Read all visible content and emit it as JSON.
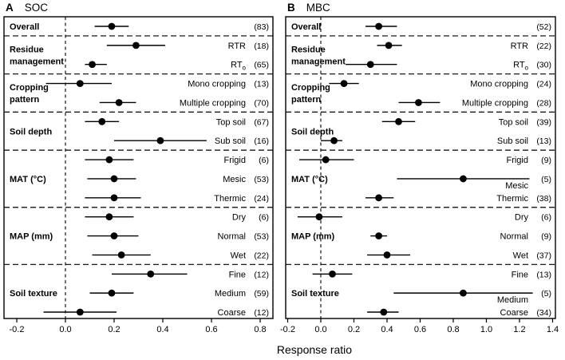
{
  "figure": {
    "xlabel": "Response ratio",
    "background": "#ffffff",
    "foreground": "#000000"
  },
  "chart_data": [
    {
      "type": "scatter",
      "panel": "A",
      "title": "SOC",
      "xlabel": "Response ratio",
      "legend": "none",
      "grid": "off",
      "xlim": [
        -0.2525,
        0.8525
      ],
      "xtick_labels": [
        "-0.2",
        "0.0",
        "0.2",
        "0.4",
        "0.6",
        "0.8"
      ],
      "xtick_values": [
        -0.2,
        0.0,
        0.2,
        0.4,
        0.6,
        0.8
      ],
      "zero_line": 0.0,
      "groups": [
        {
          "label": [
            "Overall"
          ],
          "rows": [
            {
              "label": "",
              "n": "(83)",
              "mean": 0.19,
              "ci": [
                0.12,
                0.26
              ]
            }
          ]
        },
        {
          "label": [
            "Residue",
            "management"
          ],
          "rows": [
            {
              "label": "RTR",
              "n": "(18)",
              "mean": 0.29,
              "ci": [
                0.17,
                0.41
              ]
            },
            {
              "label": "RT_o",
              "n": "(65)",
              "mean": 0.11,
              "ci": [
                0.08,
                0.17
              ]
            }
          ]
        },
        {
          "label": [
            "Cropping",
            "pattern"
          ],
          "rows": [
            {
              "label": "Mono cropping",
              "n": "(13)",
              "mean": 0.06,
              "ci": [
                -0.08,
                0.19
              ]
            },
            {
              "label": "Multiple cropping",
              "n": "(70)",
              "mean": 0.22,
              "ci": [
                0.14,
                0.29
              ]
            }
          ]
        },
        {
          "label": [
            "Soil depth"
          ],
          "rows": [
            {
              "label": "Top soil",
              "n": "(67)",
              "mean": 0.15,
              "ci": [
                0.08,
                0.22
              ]
            },
            {
              "label": "Sub soil",
              "n": "(16)",
              "mean": 0.39,
              "ci": [
                0.2,
                0.58
              ]
            }
          ]
        },
        {
          "label": [
            "MAT (°C)"
          ],
          "rows": [
            {
              "label": "Frigid",
              "n": "(6)",
              "mean": 0.18,
              "ci": [
                0.08,
                0.28
              ]
            },
            {
              "label": "Mesic",
              "n": "(53)",
              "mean": 0.2,
              "ci": [
                0.09,
                0.29
              ]
            },
            {
              "label": "Thermic",
              "n": "(24)",
              "mean": 0.2,
              "ci": [
                0.08,
                0.31
              ]
            }
          ]
        },
        {
          "label": [
            "MAP (mm)"
          ],
          "rows": [
            {
              "label": "Dry",
              "n": "(6)",
              "mean": 0.18,
              "ci": [
                0.08,
                0.28
              ]
            },
            {
              "label": "Normal",
              "n": "(53)",
              "mean": 0.2,
              "ci": [
                0.09,
                0.3
              ]
            },
            {
              "label": "Wet",
              "n": "(22)",
              "mean": 0.23,
              "ci": [
                0.11,
                0.35
              ]
            }
          ]
        },
        {
          "label": [
            "Soil texture"
          ],
          "rows": [
            {
              "label": "Fine",
              "n": "(12)",
              "mean": 0.35,
              "ci": [
                0.19,
                0.5
              ]
            },
            {
              "label": "Medium",
              "n": "(59)",
              "mean": 0.19,
              "ci": [
                0.1,
                0.28
              ]
            },
            {
              "label": "Coarse",
              "n": "(12)",
              "mean": 0.06,
              "ci": [
                -0.09,
                0.21
              ]
            }
          ]
        }
      ]
    },
    {
      "type": "scatter",
      "panel": "B",
      "title": "MBC",
      "xlabel": "Response ratio",
      "legend": "none",
      "grid": "off",
      "xlim": [
        -0.212,
        1.417
      ],
      "xtick_labels": [
        "-0.2",
        "0.0",
        "0.2",
        "0.4",
        "0.6",
        "0.8",
        "1.0",
        "1.2",
        "1.4"
      ],
      "xtick_values": [
        -0.2,
        0.0,
        0.2,
        0.4,
        0.6,
        0.8,
        1.0,
        1.2,
        1.4
      ],
      "zero_line": 0.0,
      "groups": [
        {
          "label": [
            "Overall"
          ],
          "rows": [
            {
              "label": "",
              "n": "(52)",
              "mean": 0.35,
              "ci": [
                0.27,
                0.46
              ]
            }
          ]
        },
        {
          "label": [
            "Residue",
            "management"
          ],
          "rows": [
            {
              "label": "RTR",
              "n": "(22)",
              "mean": 0.41,
              "ci": [
                0.34,
                0.49
              ]
            },
            {
              "label": "RT_o",
              "n": "(30)",
              "mean": 0.3,
              "ci": [
                0.15,
                0.46
              ]
            }
          ]
        },
        {
          "label": [
            "Cropping",
            "pattern"
          ],
          "rows": [
            {
              "label": "Mono cropping",
              "n": "(24)",
              "mean": 0.14,
              "ci": [
                0.05,
                0.23
              ]
            },
            {
              "label": "Multiple cropping",
              "n": "(28)",
              "mean": 0.59,
              "ci": [
                0.47,
                0.72
              ]
            }
          ]
        },
        {
          "label": [
            "Soil depth"
          ],
          "rows": [
            {
              "label": "Top soil",
              "n": "(39)",
              "mean": 0.47,
              "ci": [
                0.37,
                0.57
              ]
            },
            {
              "label": "Sub soil",
              "n": "(13)",
              "mean": 0.08,
              "ci": [
                0.0,
                0.13
              ]
            }
          ]
        },
        {
          "label": [
            "MAT (°C)"
          ],
          "rows": [
            {
              "label": "Frigid",
              "n": "(9)",
              "mean": 0.03,
              "ci": [
                -0.13,
                0.2
              ]
            },
            {
              "label": "Mesic",
              "n": "(5)",
              "mean": 0.86,
              "ci": [
                0.46,
                1.26
              ]
            },
            {
              "label": "Thermic",
              "n": "(38)",
              "mean": 0.35,
              "ci": [
                0.27,
                0.44
              ]
            }
          ]
        },
        {
          "label": [
            "MAP (mm)"
          ],
          "rows": [
            {
              "label": "Dry",
              "n": "(6)",
              "mean": -0.01,
              "ci": [
                -0.14,
                0.13
              ]
            },
            {
              "label": "Normal",
              "n": "(9)",
              "mean": 0.35,
              "ci": [
                0.3,
                0.4
              ]
            },
            {
              "label": "Wet",
              "n": "(37)",
              "mean": 0.4,
              "ci": [
                0.28,
                0.54
              ]
            }
          ]
        },
        {
          "label": [
            "Soil texture"
          ],
          "rows": [
            {
              "label": "Fine",
              "n": "(13)",
              "mean": 0.07,
              "ci": [
                -0.05,
                0.19
              ]
            },
            {
              "label": "Medium",
              "n": "(5)",
              "mean": 0.86,
              "ci": [
                0.44,
                1.28
              ]
            },
            {
              "label": "Coarse",
              "n": "(34)",
              "mean": 0.38,
              "ci": [
                0.28,
                0.47
              ]
            }
          ]
        }
      ]
    }
  ]
}
